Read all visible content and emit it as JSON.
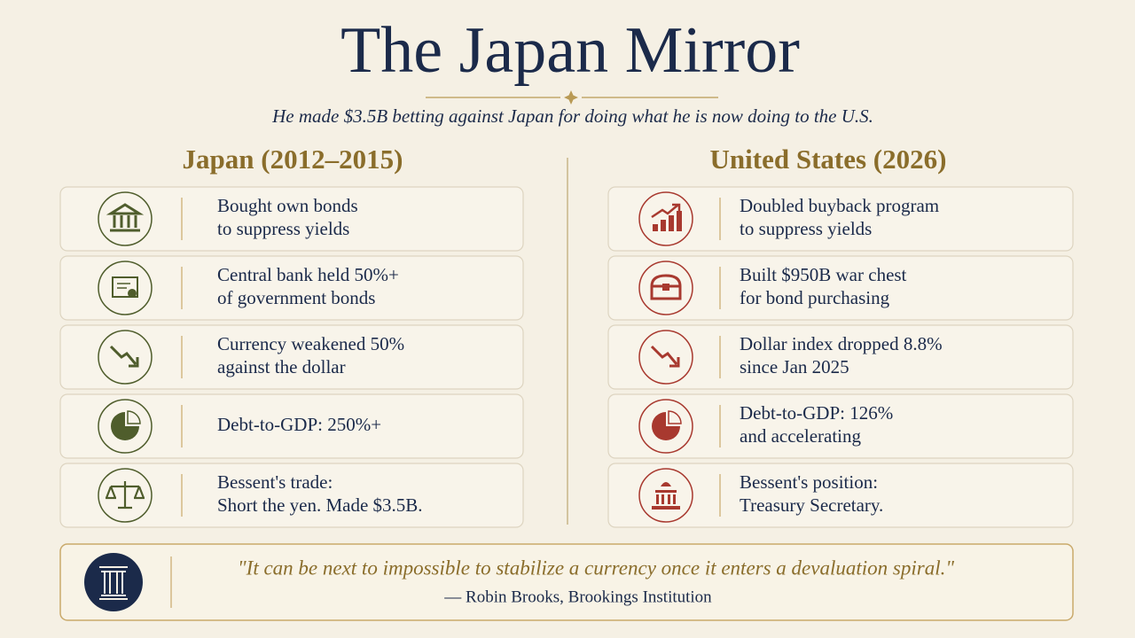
{
  "title": "The Japan Mirror",
  "subtitle": "He made $3.5B betting against Japan for doing what he is now doing to the U.S.",
  "columns": [
    {
      "heading": "Japan (2012–2015)",
      "rows": [
        {
          "lines": [
            "Bought own bonds",
            "to suppress yields"
          ]
        },
        {
          "lines": [
            "Central bank held 50%+",
            "of government bonds"
          ]
        },
        {
          "lines": [
            "Currency weakened 50%",
            "against the dollar"
          ]
        },
        {
          "lines": [
            "Debt-to-GDP: 250%+"
          ]
        },
        {
          "lines": [
            "Bessent's trade:",
            "Short the yen. Made $3.5B."
          ]
        }
      ]
    },
    {
      "heading": "United States (2026)",
      "rows": [
        {
          "lines": [
            "Doubled buyback program",
            "to suppress yields"
          ]
        },
        {
          "lines": [
            "Built $950B war chest",
            "for bond purchasing"
          ]
        },
        {
          "lines": [
            "Dollar index dropped 8.8%",
            "since Jan 2025"
          ]
        },
        {
          "lines": [
            "Debt-to-GDP: 126%",
            "and accelerating"
          ]
        },
        {
          "lines": [
            "Bessent's position:",
            "Treasury Secretary."
          ]
        }
      ]
    }
  ],
  "quote": {
    "text": "\"It can be next to impossible to stabilize a currency once it enters a devaluation spiral.\"",
    "attribution": "— Robin Brooks, Brookings Institution"
  }
}
